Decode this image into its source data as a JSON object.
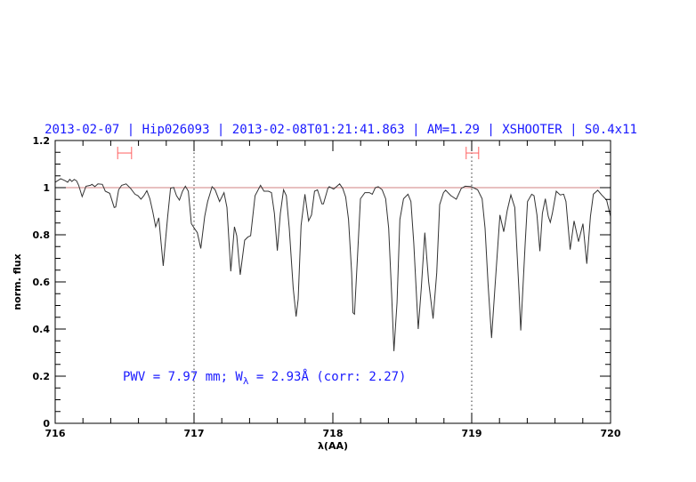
{
  "chart_data": {
    "type": "line",
    "title": "2013-02-07 | Hip026093 | 2013-02-08T01:21:41.863 | AM=1.29 | XSHOOTER | S0.4x11",
    "xlabel": "λ(AA)",
    "ylabel": "norm. flux",
    "xlim": [
      716,
      720
    ],
    "ylim": [
      0,
      1.2
    ],
    "x_ticks": [
      "716",
      "717",
      "718",
      "719",
      "720"
    ],
    "y_ticks": [
      "0",
      "0.2",
      "0.4",
      "0.6",
      "0.8",
      "1",
      "1.2"
    ],
    "x_minor_step": 0.2,
    "y_minor_step": 0.05,
    "grid": false,
    "reference_line": {
      "y": 1.0,
      "color": "#d08080"
    },
    "vertical_markers": [
      717,
      719
    ],
    "error_bars": [
      {
        "x_range": [
          716.45,
          716.55
        ],
        "y": 1.147,
        "color": "#ff6060"
      },
      {
        "x_range": [
          718.96,
          719.05
        ],
        "y": 1.147,
        "color": "#ff6060"
      }
    ],
    "annotation": {
      "prefix": "PWV = 7.97 mm; W",
      "sub": "λ",
      "suffix": " = 2.93Å (corr: 2.27)",
      "color": "#1a1aff"
    },
    "title_color": "#1a1aff",
    "series_color": "#333333",
    "x": [
      716.0,
      716.009,
      716.04,
      716.073,
      716.09,
      716.105,
      716.12,
      716.137,
      716.154,
      716.169,
      716.194,
      716.222,
      716.254,
      716.265,
      716.286,
      716.308,
      716.34,
      716.361,
      716.393,
      716.425,
      716.436,
      716.457,
      716.479,
      716.511,
      716.543,
      716.575,
      716.596,
      716.618,
      716.639,
      716.66,
      716.682,
      716.703,
      716.724,
      716.746,
      716.778,
      716.81,
      716.831,
      716.853,
      716.874,
      716.895,
      716.917,
      716.938,
      716.959,
      716.981,
      717.002,
      717.024,
      717.049,
      717.077,
      717.098,
      717.13,
      717.152,
      717.184,
      717.216,
      717.237,
      717.265,
      717.291,
      717.308,
      717.333,
      717.365,
      717.387,
      717.408,
      717.44,
      717.479,
      717.504,
      717.536,
      717.558,
      717.579,
      717.6,
      717.622,
      717.645,
      717.665,
      717.686,
      717.714,
      717.735,
      717.75,
      717.771,
      717.799,
      717.825,
      717.846,
      717.868,
      717.889,
      717.921,
      717.932,
      717.964,
      717.974,
      718.006,
      718.049,
      718.071,
      718.092,
      718.113,
      718.135,
      718.145,
      718.156,
      718.177,
      718.199,
      718.231,
      718.263,
      718.284,
      718.306,
      718.327,
      718.355,
      718.38,
      718.402,
      718.423,
      718.44,
      718.462,
      718.483,
      718.509,
      718.541,
      718.562,
      718.583,
      718.615,
      718.637,
      718.662,
      718.69,
      718.722,
      718.748,
      718.769,
      718.797,
      718.812,
      718.85,
      718.889,
      718.925,
      718.953,
      718.996,
      719.043,
      719.075,
      719.096,
      719.118,
      719.143,
      719.167,
      719.203,
      719.231,
      719.256,
      719.282,
      719.31,
      719.342,
      719.353,
      719.385,
      719.402,
      719.432,
      719.449,
      719.47,
      719.491,
      719.509,
      719.53,
      719.551,
      719.566,
      719.581,
      719.609,
      719.637,
      719.662,
      719.679,
      719.709,
      719.737,
      719.769,
      719.801,
      719.829,
      719.855,
      719.876,
      719.908,
      719.936,
      719.972,
      719.994,
      720.0
    ],
    "y": [
      1.023,
      1.026,
      1.038,
      1.029,
      1.023,
      1.035,
      1.026,
      1.035,
      1.029,
      1.01,
      0.962,
      1.006,
      1.01,
      1.014,
      1.004,
      1.016,
      1.014,
      0.985,
      0.976,
      0.916,
      0.918,
      0.991,
      1.01,
      1.016,
      0.997,
      0.972,
      0.966,
      0.951,
      0.966,
      0.987,
      0.953,
      0.897,
      0.834,
      0.872,
      0.668,
      0.878,
      0.997,
      1.001,
      0.966,
      0.947,
      0.985,
      1.006,
      0.985,
      0.847,
      0.828,
      0.809,
      0.742,
      0.878,
      0.941,
      1.004,
      0.991,
      0.941,
      0.979,
      0.916,
      0.645,
      0.834,
      0.796,
      0.63,
      0.777,
      0.79,
      0.796,
      0.966,
      1.01,
      0.985,
      0.985,
      0.979,
      0.891,
      0.733,
      0.891,
      0.991,
      0.966,
      0.828,
      0.576,
      0.453,
      0.526,
      0.84,
      0.972,
      0.859,
      0.884,
      0.985,
      0.991,
      0.931,
      0.931,
      0.997,
      1.004,
      0.994,
      1.016,
      0.997,
      0.96,
      0.865,
      0.639,
      0.469,
      0.463,
      0.702,
      0.953,
      0.979,
      0.979,
      0.972,
      1.0,
      1.004,
      0.991,
      0.953,
      0.828,
      0.551,
      0.306,
      0.513,
      0.865,
      0.953,
      0.972,
      0.941,
      0.765,
      0.4,
      0.576,
      0.809,
      0.601,
      0.444,
      0.639,
      0.928,
      0.979,
      0.989,
      0.966,
      0.951,
      0.997,
      1.006,
      1.004,
      0.991,
      0.953,
      0.828,
      0.589,
      0.362,
      0.576,
      0.884,
      0.813,
      0.903,
      0.969,
      0.916,
      0.538,
      0.394,
      0.765,
      0.941,
      0.972,
      0.966,
      0.884,
      0.73,
      0.891,
      0.953,
      0.878,
      0.853,
      0.891,
      0.985,
      0.969,
      0.972,
      0.941,
      0.737,
      0.859,
      0.771,
      0.847,
      0.677,
      0.878,
      0.972,
      0.989,
      0.969,
      0.947,
      0.891,
      0.878
    ]
  }
}
